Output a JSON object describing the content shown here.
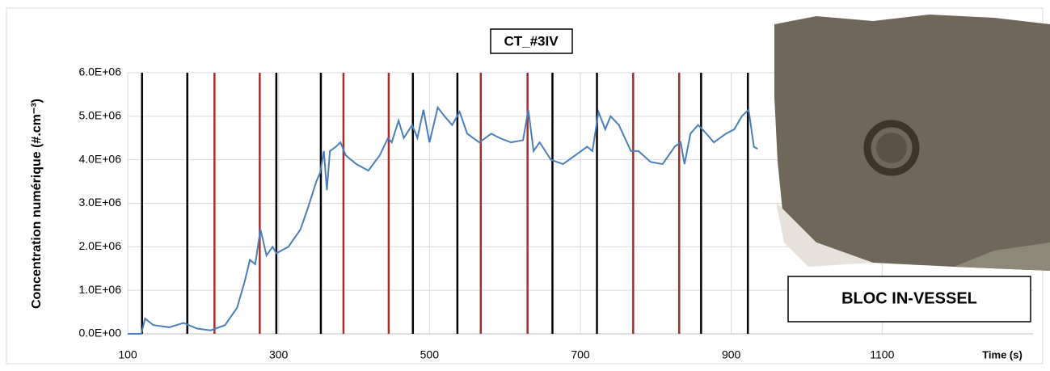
{
  "chart_data": {
    "type": "line",
    "title": "CT_#3IV",
    "y_label": "Concentration numérique (#.cm⁻³)",
    "x_label": "Time (s)",
    "annotation": "BLOC IN-VESSEL",
    "xlim": [
      100,
      1300
    ],
    "xticks": [
      100,
      300,
      500,
      700,
      900,
      1100
    ],
    "ylim": [
      0,
      6000000
    ],
    "yticks": [
      {
        "value": 0,
        "label": "0.0E+00"
      },
      {
        "value": 1000000,
        "label": "1.0E+06"
      },
      {
        "value": 2000000,
        "label": "2.0E+06"
      },
      {
        "value": 3000000,
        "label": "3.0E+06"
      },
      {
        "value": 4000000,
        "label": "4.0E+06"
      },
      {
        "value": 5000000,
        "label": "5.0E+06"
      },
      {
        "value": 6000000,
        "label": "6.0E+06"
      }
    ],
    "grid": true,
    "series": [
      {
        "color": "#4a7ebb",
        "x": [
          100,
          118,
          123,
          134,
          155,
          174,
          192,
          210,
          229,
          245,
          255,
          262,
          269,
          276,
          284,
          292,
          297,
          313,
          329,
          339,
          350,
          355,
          360,
          364,
          368,
          376,
          382,
          389,
          403,
          419,
          434,
          445,
          450,
          459,
          466,
          477,
          484,
          492,
          500,
          511,
          520,
          530,
          540,
          550,
          566,
          582,
          593,
          608,
          624,
          631,
          638,
          646,
          661,
          677,
          693,
          709,
          716,
          724,
          733,
          740,
          751,
          767,
          777,
          793,
          809,
          825,
          833,
          838,
          846,
          856,
          867,
          877,
          893,
          904,
          914,
          923,
          930,
          935
        ],
        "values": [
          0,
          0,
          350000,
          200000,
          150000,
          250000,
          120000,
          80000,
          200000,
          600000,
          1200000,
          1700000,
          1600000,
          2400000,
          1800000,
          2000000,
          1850000,
          2000000,
          2400000,
          2900000,
          3500000,
          3700000,
          4200000,
          3300000,
          4200000,
          4300000,
          4400000,
          4100000,
          3900000,
          3750000,
          4100000,
          4500000,
          4400000,
          4900000,
          4500000,
          4800000,
          4500000,
          5150000,
          4400000,
          5200000,
          5000000,
          4800000,
          5100000,
          4600000,
          4400000,
          4600000,
          4500000,
          4400000,
          4450000,
          5150000,
          4200000,
          4400000,
          4000000,
          3900000,
          4100000,
          4300000,
          4200000,
          5100000,
          4700000,
          5000000,
          4800000,
          4200000,
          4200000,
          3950000,
          3900000,
          4300000,
          4400000,
          3900000,
          4600000,
          4800000,
          4600000,
          4400000,
          4600000,
          4700000,
          5000000,
          5150000,
          4300000,
          4250000
        ]
      }
    ],
    "markers": [
      {
        "color": "#000000",
        "x": [
          119,
          179,
          297,
          356,
          478,
          537,
          663,
          722,
          860,
          922
        ]
      },
      {
        "color": "#a0302a",
        "x": [
          215,
          275,
          386,
          446,
          568,
          630,
          770,
          831
        ]
      }
    ]
  }
}
